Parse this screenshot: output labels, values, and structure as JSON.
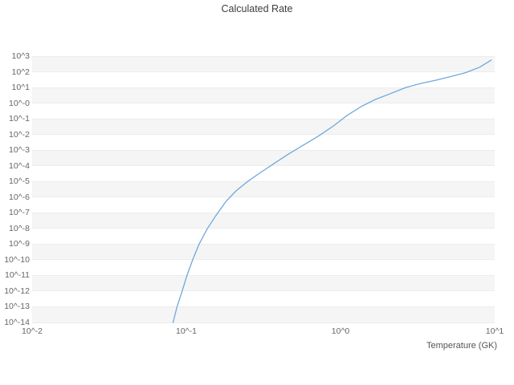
{
  "title": "Calculated Rate",
  "style": {
    "line_color": "#6fa8dc",
    "band_color": "#f5f5f5",
    "background": "#ffffff"
  },
  "chart_data": {
    "type": "line",
    "title": "Calculated Rate",
    "xlabel": "Temperature (GK)",
    "ylabel": "",
    "xscale": "log",
    "yscale": "log",
    "xlim": [
      0.01,
      10
    ],
    "ylim": [
      1e-14,
      1000
    ],
    "grid": "horizontal-bands",
    "legend": "none",
    "x_tick_labels": [
      "10^-2",
      "10^-1",
      "10^0",
      "10^1"
    ],
    "x_tick_exponents": [
      -2,
      -1,
      0,
      1
    ],
    "y_tick_labels": [
      "10^3",
      "10^2",
      "10^1",
      "10^-0",
      "10^-1",
      "10^-2",
      "10^-3",
      "10^-4",
      "10^-5",
      "10^-6",
      "10^-7",
      "10^-8",
      "10^-9",
      "10^-10",
      "10^-11",
      "10^-12",
      "10^-13",
      "10^-14"
    ],
    "y_tick_exponents": [
      3,
      2,
      1,
      0,
      -1,
      -2,
      -3,
      -4,
      -5,
      -6,
      -7,
      -8,
      -9,
      -10,
      -11,
      -12,
      -13,
      -14
    ],
    "series": [
      {
        "name": "calculated-rate",
        "x": [
          0.082,
          0.087,
          0.094,
          0.101,
          0.11,
          0.121,
          0.137,
          0.155,
          0.18,
          0.21,
          0.25,
          0.3,
          0.37,
          0.46,
          0.57,
          0.72,
          0.9,
          1.1,
          1.37,
          1.7,
          2.1,
          2.65,
          3.3,
          4.1,
          5.2,
          6.5,
          8.0,
          9.5
        ],
        "y": [
          1e-14,
          1e-13,
          1e-12,
          1e-11,
          1e-10,
          1e-09,
          1e-08,
          6.3e-08,
          5e-07,
          2.5e-06,
          1e-05,
          3.5e-05,
          0.00014,
          0.00056,
          0.002,
          0.0079,
          0.035,
          0.16,
          0.63,
          1.8,
          4.0,
          10,
          18,
          28,
          50,
          89,
          200,
          560
        ]
      }
    ]
  }
}
